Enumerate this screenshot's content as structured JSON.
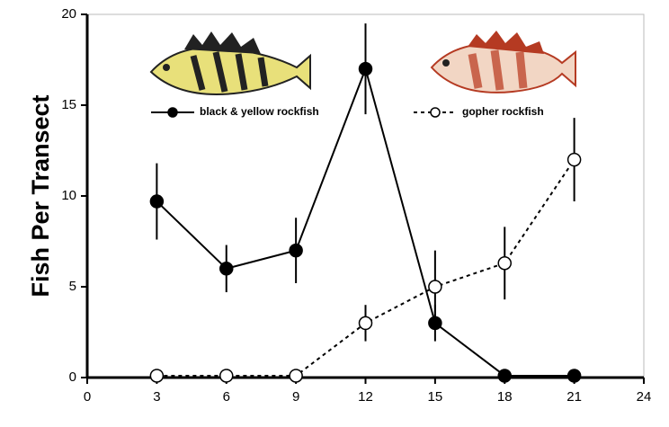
{
  "chart_data": {
    "type": "line",
    "y_label": "Fish Per Transect",
    "xlim": [
      0,
      24
    ],
    "xticks": [
      0,
      3,
      6,
      9,
      12,
      15,
      18,
      21,
      24
    ],
    "ylim": [
      0,
      20
    ],
    "yticks": [
      0,
      5,
      10,
      15,
      20
    ],
    "x": [
      3,
      6,
      9,
      12,
      15,
      18,
      21
    ],
    "series": [
      {
        "name": "black & yellow rockfish",
        "color": "#000000",
        "marker_fill": "#000000",
        "dashed": false,
        "values": [
          9.7,
          6,
          7,
          17,
          3,
          0.1,
          0.1
        ],
        "errors": [
          2.1,
          1.3,
          1.8,
          2.5,
          1,
          0,
          0
        ]
      },
      {
        "name": "gopher rockfish",
        "color": "#000000",
        "marker_fill": "#ffffff",
        "dashed": true,
        "values": [
          0.1,
          0.1,
          0.1,
          3,
          5,
          6.3,
          12
        ],
        "errors": [
          0,
          0,
          0,
          1,
          2,
          2,
          2.3
        ]
      }
    ]
  }
}
